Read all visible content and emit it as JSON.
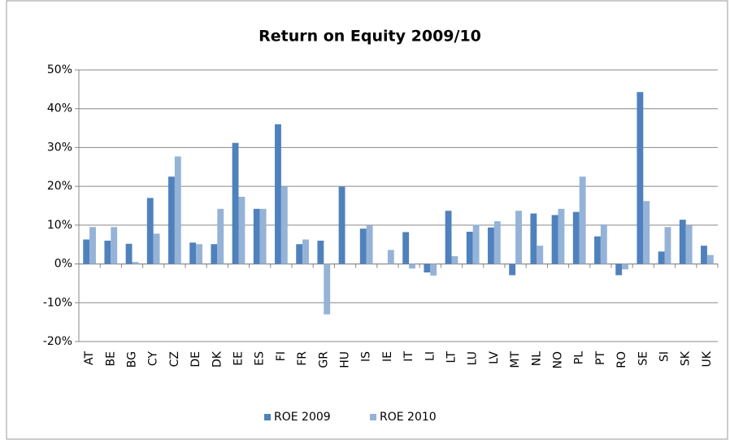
{
  "chart_data": {
    "type": "bar",
    "title": "Return on Equity  2009/10",
    "categories": [
      "AT",
      "BE",
      "BG",
      "CY",
      "CZ",
      "DE",
      "DK",
      "EE",
      "ES",
      "FI",
      "FR",
      "GR",
      "HU",
      "IS",
      "IE",
      "IT",
      "LI",
      "LT",
      "LU",
      "LV",
      "MT",
      "NL",
      "NO",
      "PL",
      "PT",
      "RO",
      "SE",
      "SI",
      "SK",
      "UK"
    ],
    "series": [
      {
        "name": "ROE 2009",
        "color": "#4f81bd",
        "values": [
          6.3,
          6.0,
          5.2,
          17,
          22.5,
          5.5,
          5.1,
          31.2,
          14.2,
          36,
          5.1,
          6.0,
          19.9,
          9.1,
          null,
          8.2,
          -2.2,
          13.7,
          8.3,
          9.4,
          -2.9,
          13.0,
          12.6,
          13.4,
          7.1,
          -2.9,
          44.3,
          3.2,
          11.4,
          4.7
        ]
      },
      {
        "name": "ROE 2010",
        "color": "#95b3d7",
        "values": [
          9.5,
          9.5,
          0.5,
          7.8,
          27.7,
          5.1,
          14.2,
          17.3,
          14.2,
          19.9,
          6.3,
          -13,
          null,
          9.9,
          3.6,
          -1.2,
          -3.0,
          2.0,
          10.1,
          11.0,
          13.7,
          4.7,
          14.2,
          22.5,
          10.2,
          -1.4,
          16.2,
          9.5,
          9.9,
          2.3
        ]
      }
    ],
    "ylim": [
      -20,
      50
    ],
    "yticks": [
      {
        "value": -20,
        "label": "-20%"
      },
      {
        "value": -10,
        "label": "-10%"
      },
      {
        "value": 0,
        "label": "0%"
      },
      {
        "value": 10,
        "label": "10%"
      },
      {
        "value": 20,
        "label": "20%"
      },
      {
        "value": 30,
        "label": "30%"
      },
      {
        "value": 40,
        "label": "40%"
      },
      {
        "value": 50,
        "label": "50%"
      }
    ],
    "grid": true,
    "legend": "bottom"
  }
}
